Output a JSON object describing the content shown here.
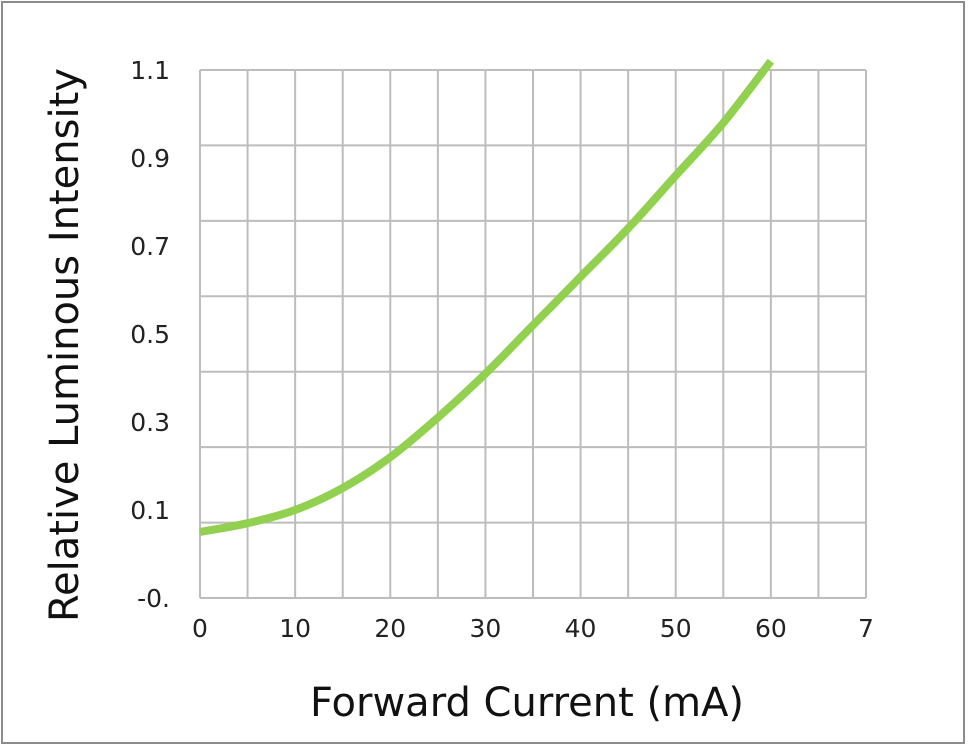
{
  "chart_data": {
    "type": "line",
    "xlabel": "Forward Current (mA)",
    "ylabel": "Relative Luminous Intensity",
    "x_ticks": [
      "0",
      "10",
      "20",
      "30",
      "40",
      "50",
      "60",
      "7"
    ],
    "y_ticks": [
      "-0.",
      "0.1",
      "0.3",
      "0.5",
      "0.7",
      "0.9",
      "1.1"
    ],
    "xlim": [
      0,
      70
    ],
    "ylim": [
      -0.1,
      1.1
    ],
    "grid": true,
    "series": [
      {
        "color": "#92d050",
        "x": [
          0,
          5,
          10,
          15,
          20,
          25,
          30,
          35,
          40,
          45,
          50,
          55,
          60
        ],
        "y": [
          0.05,
          0.07,
          0.1,
          0.15,
          0.22,
          0.31,
          0.41,
          0.52,
          0.63,
          0.74,
          0.86,
          0.98,
          1.12
        ]
      }
    ]
  }
}
